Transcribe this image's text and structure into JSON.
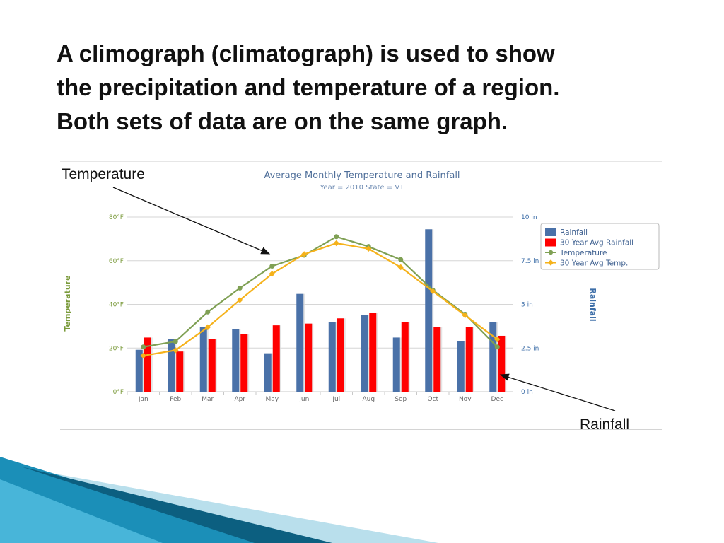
{
  "slide": {
    "heading_lines": [
      "A climograph (climatograph) is used to show",
      "the precipitation and temperature of a region.",
      "Both sets of data are on the same graph."
    ],
    "callouts": {
      "temperature": "Temperature",
      "rainfall": "Rainfall"
    }
  },
  "chart_data": {
    "type": "bar+line",
    "title": "Average Monthly Temperature and Rainfall",
    "subtitle": "Year = 2010 State = VT",
    "categories": [
      "Jan",
      "Feb",
      "Mar",
      "Apr",
      "May",
      "Jun",
      "Jul",
      "Aug",
      "Sep",
      "Oct",
      "Nov",
      "Dec"
    ],
    "y_left": {
      "label": "Temperature",
      "ticks": [
        "0°F",
        "20°F",
        "40°F",
        "60°F",
        "80°F"
      ],
      "range": [
        0,
        80
      ],
      "color": "#7a9a3a"
    },
    "y_right": {
      "label": "Rainfall",
      "ticks": [
        "0 in",
        "2.5 in",
        "5 in",
        "7.5 in",
        "10 in"
      ],
      "range": [
        0,
        10
      ],
      "color": "#3d6ea8"
    },
    "grid": true,
    "legend_position": "right",
    "series": [
      {
        "name": "Rainfall",
        "kind": "bar",
        "axis": "right",
        "color": "#4a71a8",
        "values": [
          2.4,
          3.0,
          3.7,
          3.6,
          2.2,
          5.6,
          4.0,
          4.4,
          3.1,
          9.3,
          2.9,
          4.0
        ]
      },
      {
        "name": "30 Year Avg Rainfall",
        "kind": "bar",
        "axis": "right",
        "color": "#ff0000",
        "values": [
          3.1,
          2.3,
          3.0,
          3.3,
          3.8,
          3.9,
          4.2,
          4.5,
          4.0,
          3.7,
          3.7,
          3.2
        ]
      },
      {
        "name": "Temperature",
        "kind": "line",
        "axis": "left",
        "color": "#7fa054",
        "values": [
          20.5,
          23,
          36.5,
          47.5,
          57.5,
          62.5,
          71,
          66.5,
          60.5,
          46.5,
          35.5,
          20.5
        ]
      },
      {
        "name": "30 Year Avg Temp.",
        "kind": "line",
        "axis": "left",
        "color": "#f5b21b",
        "values": [
          16.5,
          19,
          29.5,
          42,
          54,
          63,
          68,
          65.5,
          57,
          46,
          35,
          24
        ]
      }
    ]
  },
  "decoration": {
    "stripe_colors": [
      "#1b8fb8",
      "#48b5d9",
      "#0c5f80",
      "#b9dfec"
    ]
  }
}
